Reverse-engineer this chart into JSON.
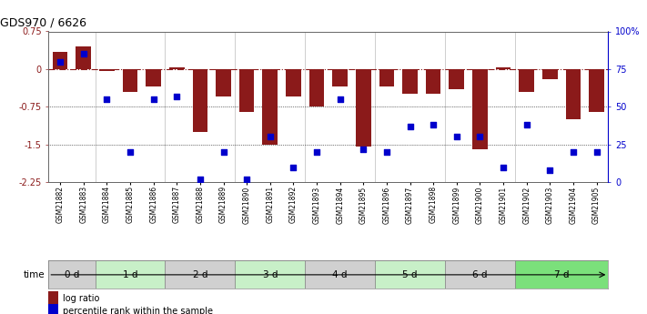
{
  "title": "GDS970 / 6626",
  "samples": [
    "GSM21882",
    "GSM21883",
    "GSM21884",
    "GSM21885",
    "GSM21886",
    "GSM21887",
    "GSM21888",
    "GSM21889",
    "GSM21890",
    "GSM21891",
    "GSM21892",
    "GSM21893",
    "GSM21894",
    "GSM21895",
    "GSM21896",
    "GSM21897",
    "GSM21898",
    "GSM21899",
    "GSM21900",
    "GSM21901",
    "GSM21902",
    "GSM21903",
    "GSM21904",
    "GSM21905"
  ],
  "log_ratio": [
    0.35,
    0.45,
    -0.03,
    -0.45,
    -0.35,
    0.04,
    -1.25,
    -0.55,
    -0.85,
    -1.5,
    -0.55,
    -0.75,
    -0.35,
    -1.55,
    -0.35,
    -0.5,
    -0.5,
    -0.4,
    -1.6,
    0.04,
    -0.45,
    -0.2,
    -1.0,
    -0.85
  ],
  "pct_rank": [
    80,
    85,
    55,
    20,
    55,
    57,
    2,
    20,
    2,
    30,
    10,
    20,
    55,
    22,
    20,
    37,
    38,
    30,
    30,
    10,
    38,
    8,
    20,
    20
  ],
  "time_groups": [
    {
      "label": "0 d",
      "start": 0,
      "end": 2,
      "color": "#d0d0d0"
    },
    {
      "label": "1 d",
      "start": 2,
      "end": 5,
      "color": "#c8f0c8"
    },
    {
      "label": "2 d",
      "start": 5,
      "end": 8,
      "color": "#d0d0d0"
    },
    {
      "label": "3 d",
      "start": 8,
      "end": 11,
      "color": "#c8f0c8"
    },
    {
      "label": "4 d",
      "start": 11,
      "end": 14,
      "color": "#d0d0d0"
    },
    {
      "label": "5 d",
      "start": 14,
      "end": 17,
      "color": "#c8f0c8"
    },
    {
      "label": "6 d",
      "start": 17,
      "end": 20,
      "color": "#d0d0d0"
    },
    {
      "label": "7 d",
      "start": 20,
      "end": 24,
      "color": "#7be07b"
    }
  ],
  "ylim_left": [
    -2.25,
    0.75
  ],
  "ylim_right": [
    0,
    100
  ],
  "yticks_left": [
    0.75,
    0,
    -0.75,
    -1.5,
    -2.25
  ],
  "yticks_right": [
    100,
    75,
    50,
    25,
    0
  ],
  "bar_color": "#8b1a1a",
  "dot_color": "#0000cc",
  "zero_line_color": "#8b1a1a",
  "grid_line_color": "#000000",
  "bg_color": "#ffffff"
}
